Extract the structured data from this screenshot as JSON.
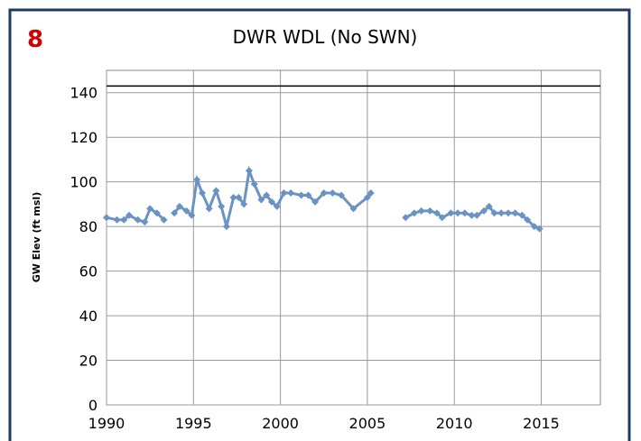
{
  "chart_data": {
    "type": "line",
    "badge": "8",
    "title": "DWR WDL (No SWN)",
    "y_label": "GW Elev (ft msl)",
    "x": [
      1990.0,
      1990.6,
      1991.0,
      1991.3,
      1991.8,
      1992.2,
      1992.5,
      1992.9,
      1993.3,
      1993.6,
      1993.9,
      1994.2,
      1994.6,
      1994.9,
      1995.2,
      1995.5,
      1995.9,
      1996.3,
      1996.6,
      1996.9,
      1997.3,
      1997.6,
      1997.9,
      1998.2,
      1998.5,
      1998.9,
      1999.2,
      1999.5,
      1999.8,
      2000.2,
      2000.6,
      2001.2,
      2001.6,
      2002.0,
      2002.5,
      2003.0,
      2003.5,
      2004.2,
      2005.0,
      2005.2,
      2006.2,
      2007.2,
      2007.7,
      2008.1,
      2008.6,
      2009.0,
      2009.3,
      2009.8,
      2010.2,
      2010.6,
      2011.0,
      2011.3,
      2011.7,
      2012.0,
      2012.3,
      2012.7,
      2013.1,
      2013.5,
      2013.9,
      2014.2,
      2014.6,
      2014.9
    ],
    "series": [
      {
        "color": "#6a93c3",
        "values": [
          84,
          83,
          83,
          85,
          83,
          82,
          88,
          86,
          83,
          null,
          86,
          89,
          87,
          85,
          101,
          95,
          88,
          96,
          89,
          80,
          93,
          93,
          90,
          105,
          99,
          92,
          94,
          91,
          89,
          95,
          95,
          94,
          94,
          91,
          95,
          95,
          94,
          88,
          93,
          95,
          null,
          84,
          86,
          87,
          87,
          86,
          84,
          86,
          86,
          86,
          85,
          85,
          87,
          89,
          86,
          86,
          86,
          86,
          85,
          83,
          80,
          79
        ]
      }
    ],
    "reference_line": 143,
    "reference_color": "#000000",
    "xlim": [
      1990,
      2018.4
    ],
    "xticks": [
      1990,
      1995,
      2000,
      2005,
      2010,
      2015
    ],
    "ylim": [
      0,
      150
    ],
    "yticks": [
      0,
      20,
      40,
      60,
      80,
      100,
      120,
      140
    ],
    "grid": true
  }
}
